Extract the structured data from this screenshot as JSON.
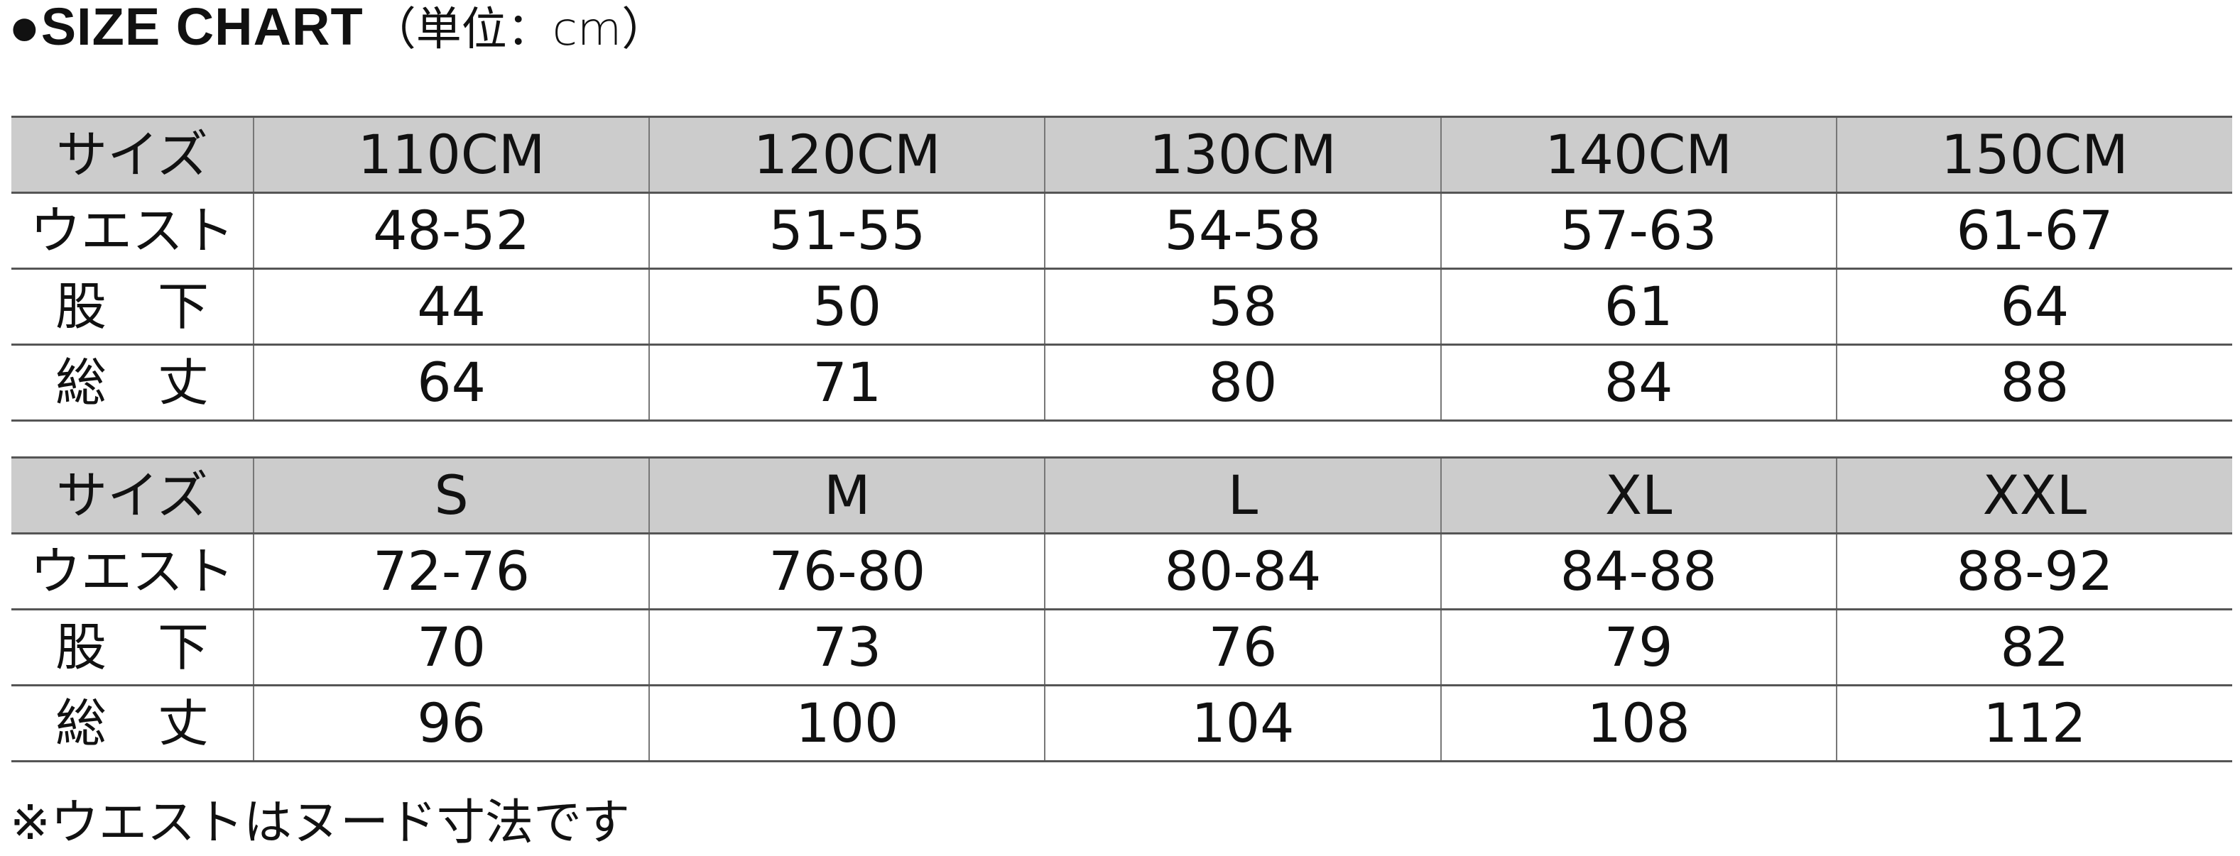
{
  "title": {
    "main": "●SIZE CHART",
    "unit": "（単位：cm）"
  },
  "header_color": "#cccccc",
  "tables": [
    {
      "header": {
        "label": "サイズ",
        "sizes": [
          "110CM",
          "120CM",
          "130CM",
          "140CM",
          "150CM"
        ]
      },
      "rows": [
        {
          "label": "ウエスト",
          "values": [
            "48-52",
            "51-55",
            "54-58",
            "57-63",
            "61-67"
          ]
        },
        {
          "label": "股　下",
          "values": [
            "44",
            "50",
            "58",
            "61",
            "64"
          ]
        },
        {
          "label": "総　丈",
          "values": [
            "64",
            "71",
            "80",
            "84",
            "88"
          ]
        }
      ]
    },
    {
      "header": {
        "label": "サイズ",
        "sizes": [
          "S",
          "M",
          "L",
          "XL",
          "XXL"
        ]
      },
      "rows": [
        {
          "label": "ウエスト",
          "values": [
            "72-76",
            "76-80",
            "80-84",
            "84-88",
            "88-92"
          ]
        },
        {
          "label": "股　下",
          "values": [
            "70",
            "73",
            "76",
            "79",
            "82"
          ]
        },
        {
          "label": "総　丈",
          "values": [
            "96",
            "100",
            "104",
            "108",
            "112"
          ]
        }
      ]
    }
  ],
  "footnote": "※ウエストはヌード寸法です"
}
